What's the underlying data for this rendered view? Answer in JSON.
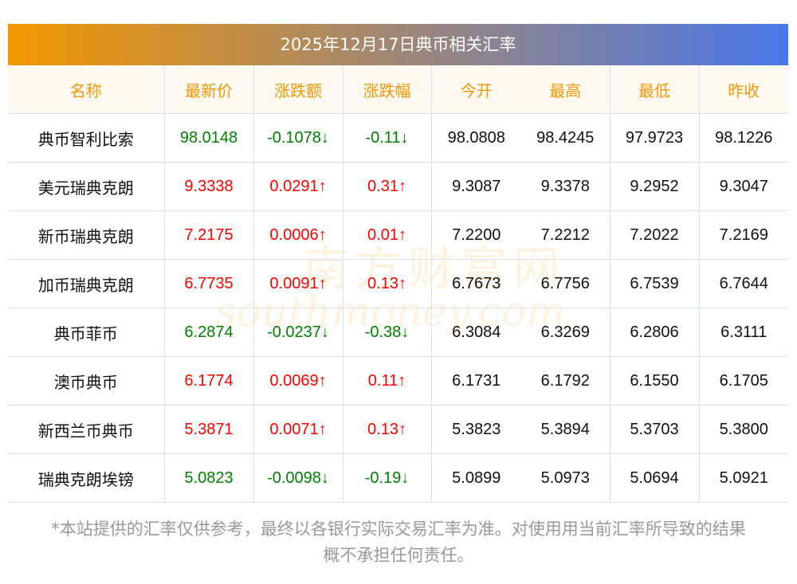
{
  "title": "2025年12月17日典币相关汇率",
  "headers": [
    "名称",
    "最新价",
    "涨跌额",
    "涨跌幅",
    "今开",
    "最高",
    "最低",
    "昨收"
  ],
  "rows": [
    {
      "name": "典币智利比索",
      "price": "98.0148",
      "change": "-0.1078↓",
      "pct": "-0.11↓",
      "open": "98.0808",
      "high": "98.4245",
      "low": "97.9723",
      "prev": "98.1226",
      "dir": "down"
    },
    {
      "name": "美元瑞典克朗",
      "price": "9.3338",
      "change": "0.0291↑",
      "pct": "0.31↑",
      "open": "9.3087",
      "high": "9.3378",
      "low": "9.2952",
      "prev": "9.3047",
      "dir": "up"
    },
    {
      "name": "新币瑞典克朗",
      "price": "7.2175",
      "change": "0.0006↑",
      "pct": "0.01↑",
      "open": "7.2200",
      "high": "7.2212",
      "low": "7.2022",
      "prev": "7.2169",
      "dir": "up"
    },
    {
      "name": "加币瑞典克朗",
      "price": "6.7735",
      "change": "0.0091↑",
      "pct": "0.13↑",
      "open": "6.7673",
      "high": "6.7756",
      "low": "6.7539",
      "prev": "6.7644",
      "dir": "up"
    },
    {
      "name": "典币菲币",
      "price": "6.2874",
      "change": "-0.0237↓",
      "pct": "-0.38↓",
      "open": "6.3084",
      "high": "6.3269",
      "low": "6.2806",
      "prev": "6.3111",
      "dir": "down"
    },
    {
      "name": "澳币典币",
      "price": "6.1774",
      "change": "0.0069↑",
      "pct": "0.11↑",
      "open": "6.1731",
      "high": "6.1792",
      "low": "6.1550",
      "prev": "6.1705",
      "dir": "up"
    },
    {
      "name": "新西兰币典币",
      "price": "5.3871",
      "change": "0.0071↑",
      "pct": "0.13↑",
      "open": "5.3823",
      "high": "5.3894",
      "low": "5.3703",
      "prev": "5.3800",
      "dir": "up"
    },
    {
      "name": "瑞典克朗埃镑",
      "price": "5.0823",
      "change": "-0.0098↓",
      "pct": "-0.19↓",
      "open": "5.0899",
      "high": "5.0973",
      "low": "5.0694",
      "prev": "5.0921",
      "dir": "down"
    }
  ],
  "watermark": {
    "cn": "南方财富网",
    "en": "southmoney.com"
  },
  "footer": {
    "line1": "*本站提供的汇率仅供参考，最终以各银行实际交易汇率为准。对使用用当前汇率所导致的结果",
    "line2": "概不承担任何责任。"
  },
  "colors": {
    "up": "#ff0000",
    "down": "#008000",
    "header": "#f39800",
    "gradient_start": "#f39800",
    "gradient_end": "#4a78ea"
  }
}
